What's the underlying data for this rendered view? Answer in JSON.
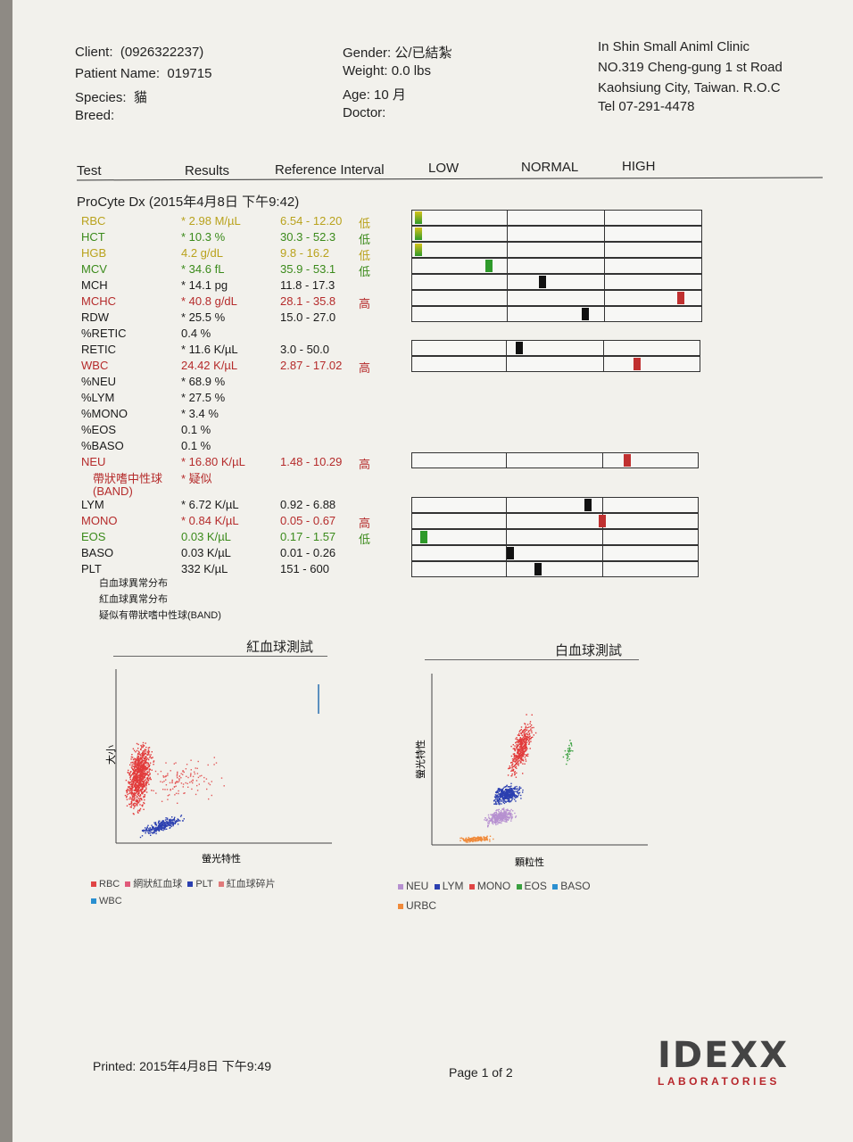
{
  "client": {
    "label": "Client:",
    "value": "(0926322237)"
  },
  "patient": {
    "label": "Patient Name:",
    "value": "019715"
  },
  "species": {
    "label": "Species:",
    "value": "貓"
  },
  "breed": {
    "label": "Breed:",
    "value": ""
  },
  "gender": {
    "label": "Gender:",
    "value": "公/已結紮"
  },
  "weight": {
    "label": "Weight:",
    "value": "0.0 lbs"
  },
  "age": {
    "label": "Age:",
    "value": "10 月"
  },
  "doctor": {
    "label": "Doctor:",
    "value": ""
  },
  "clinic": {
    "name": "In Shin Small Animl Clinic",
    "address1": "NO.319 Cheng-gung 1 st Road",
    "address2": "Kaohsiung City, Taiwan. R.O.C",
    "tel": "Tel 07-291-4478"
  },
  "columns": {
    "test": "Test",
    "results": "Results",
    "reference": "Reference Interval",
    "low": "LOW",
    "normal": "NORMAL",
    "high": "HIGH"
  },
  "section_title": "ProCyte Dx (2015年4月8日 下午9:42)",
  "rows": [
    {
      "test": "RBC",
      "result": "* 2.98 M/µL",
      "ref": "6.54 - 12.20",
      "flag": "低",
      "style": "yel"
    },
    {
      "test": "HCT",
      "result": "* 10.3 %",
      "ref": "30.3 - 52.3",
      "flag": "低",
      "style": "low"
    },
    {
      "test": "HGB",
      "result": "4.2 g/dL",
      "ref": "9.8 - 16.2",
      "flag": "低",
      "style": "yel"
    },
    {
      "test": "MCV",
      "result": "* 34.6 fL",
      "ref": "35.9 - 53.1",
      "flag": "低",
      "style": "low"
    },
    {
      "test": "MCH",
      "result": "* 14.1 pg",
      "ref": "11.8 - 17.3",
      "flag": "",
      "style": ""
    },
    {
      "test": "MCHC",
      "result": "* 40.8 g/dL",
      "ref": "28.1 - 35.8",
      "flag": "高",
      "style": "high"
    },
    {
      "test": "RDW",
      "result": "* 25.5 %",
      "ref": "15.0 - 27.0",
      "flag": "",
      "style": ""
    },
    {
      "test": "%RETIC",
      "result": "0.4 %",
      "ref": "",
      "flag": "",
      "style": ""
    },
    {
      "test": "RETIC",
      "result": "* 11.6 K/µL",
      "ref": "3.0 - 50.0",
      "flag": "",
      "style": ""
    },
    {
      "test": "WBC",
      "result": "24.42 K/µL",
      "ref": "2.87 - 17.02",
      "flag": "高",
      "style": "high"
    },
    {
      "test": "%NEU",
      "result": "* 68.9 %",
      "ref": "",
      "flag": "",
      "style": ""
    },
    {
      "test": "%LYM",
      "result": "* 27.5 %",
      "ref": "",
      "flag": "",
      "style": ""
    },
    {
      "test": "%MONO",
      "result": "* 3.4 %",
      "ref": "",
      "flag": "",
      "style": ""
    },
    {
      "test": "%EOS",
      "result": "0.1 %",
      "ref": "",
      "flag": "",
      "style": ""
    },
    {
      "test": "%BASO",
      "result": "0.1 %",
      "ref": "",
      "flag": "",
      "style": ""
    },
    {
      "test": "NEU",
      "result": "* 16.80 K/µL",
      "ref": "1.48 - 10.29",
      "flag": "高",
      "style": "high"
    },
    {
      "test": "帶狀嗜中性球",
      "result": "* 疑似",
      "ref": "",
      "flag": "",
      "style": "high"
    },
    {
      "test": "(BAND)",
      "result": "",
      "ref": "",
      "flag": "",
      "style": "high"
    },
    {
      "test": "LYM",
      "result": "* 6.72 K/µL",
      "ref": "0.92 - 6.88",
      "flag": "",
      "style": ""
    },
    {
      "test": "MONO",
      "result": "* 0.84 K/µL",
      "ref": "0.05 - 0.67",
      "flag": "高",
      "style": "high"
    },
    {
      "test": "EOS",
      "result": "0.03 K/µL",
      "ref": "0.17 - 1.57",
      "flag": "低",
      "style": "low"
    },
    {
      "test": "BASO",
      "result": "0.03 K/µL",
      "ref": "0.01 - 0.26",
      "flag": "",
      "style": ""
    },
    {
      "test": "PLT",
      "result": "332 K/µL",
      "ref": "151 - 600",
      "flag": "",
      "style": ""
    }
  ],
  "notes": [
    "白血球異常分布",
    "紅血球異常分布",
    "疑似有帶狀嗜中性球(BAND)"
  ],
  "rbc_plot": {
    "title": "紅血球測試",
    "xlabel": "螢光特性",
    "ylabel": "大小",
    "legend": [
      "RBC",
      "網狀紅血球",
      "PLT",
      "紅血球碎片",
      "WBC"
    ]
  },
  "wbc_plot": {
    "title": "白血球測試",
    "xlabel": "顆粒性",
    "ylabel": "螢光特性",
    "legend": [
      "NEU",
      "LYM",
      "MONO",
      "EOS",
      "BASO",
      "URBC"
    ]
  },
  "footer": {
    "printed": "Printed: 2015年4月8日 下午9:49",
    "page": "Page 1 of 2",
    "brand": "IDEXX",
    "brand_sub": "LABORATORIES"
  },
  "colors": {
    "low": "#3a8a1a",
    "high": "#b52b2b",
    "normal": "#111111",
    "idexx_red": "#b8262b"
  }
}
